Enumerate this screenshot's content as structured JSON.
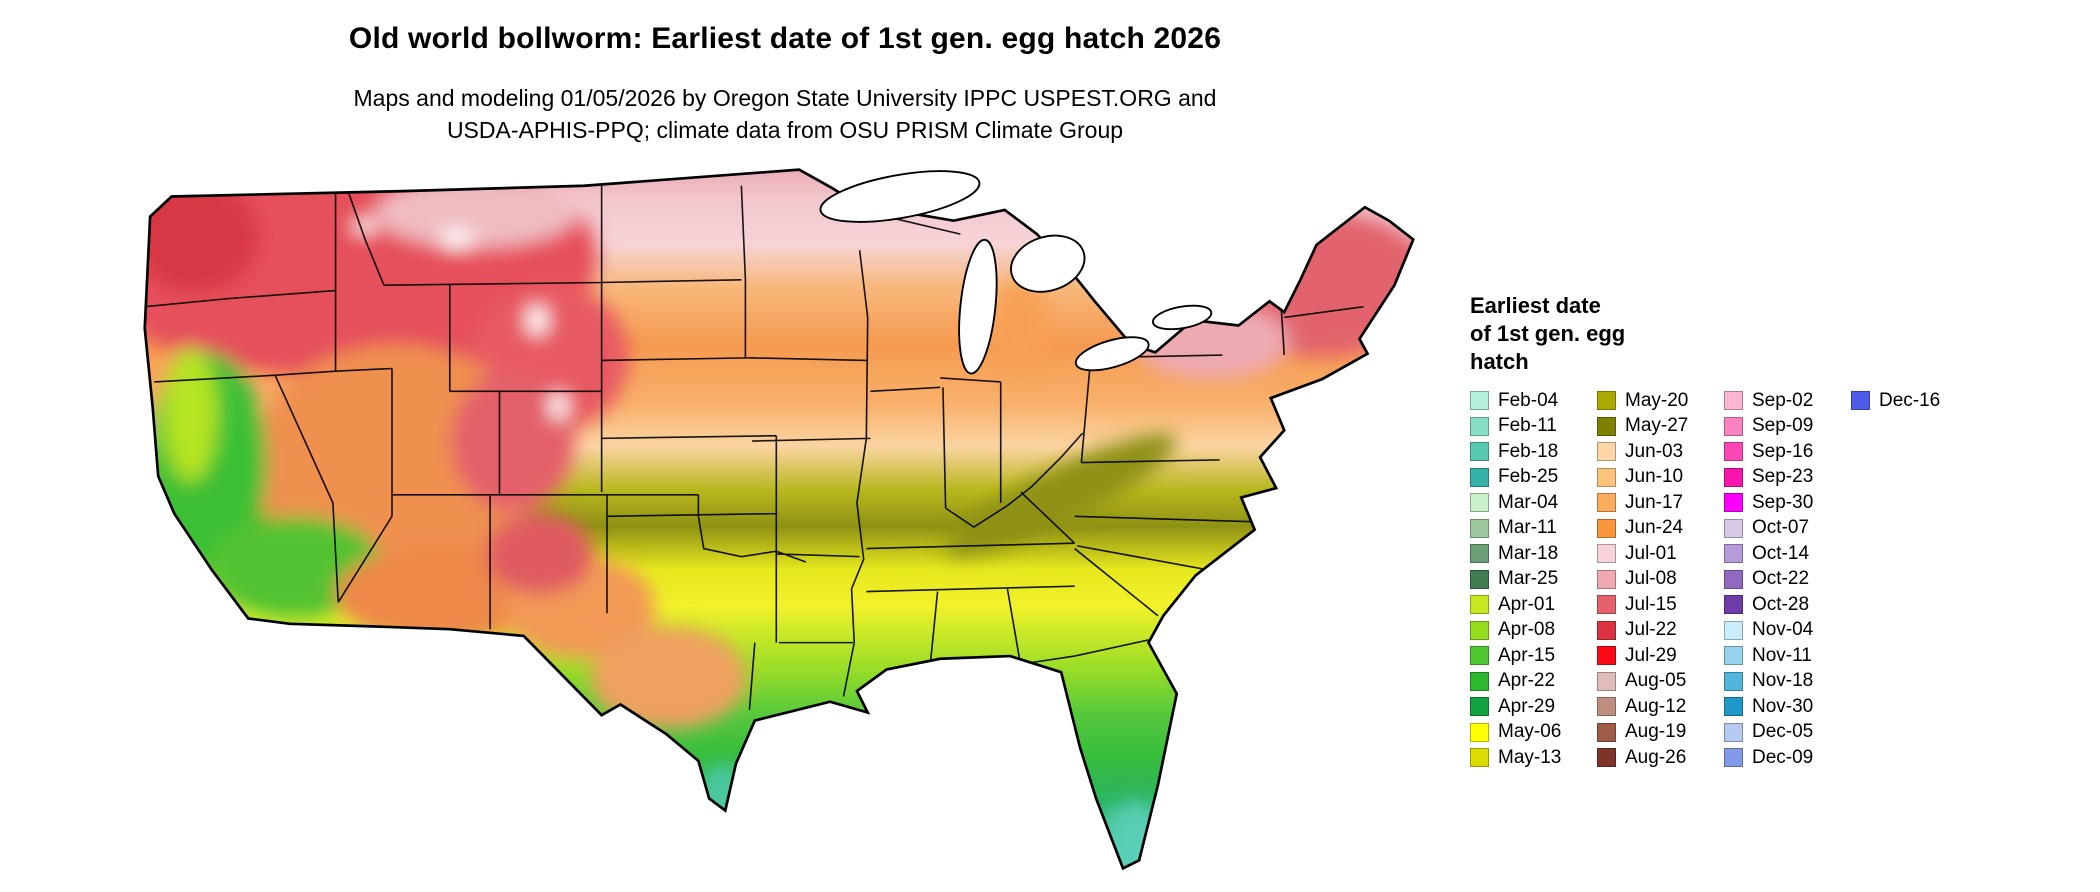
{
  "title": "Old world bollworm: Earliest date of 1st gen. egg hatch 2026",
  "subtitle": {
    "line1": "Maps and modeling 01/05/2026 by Oregon State University IPPC USPEST.ORG and",
    "line2": "USDA-APHIS-PPQ; climate data from OSU PRISM Climate Group"
  },
  "legend": {
    "title_lines": [
      "Earliest date",
      "of 1st gen. egg",
      "hatch"
    ],
    "columns": [
      [
        {
          "label": "Feb-04",
          "color": "#b2f0dc"
        },
        {
          "label": "Feb-11",
          "color": "#86dfc6"
        },
        {
          "label": "Feb-18",
          "color": "#58c9b2"
        },
        {
          "label": "Feb-25",
          "color": "#35b3a8"
        },
        {
          "label": "Mar-04",
          "color": "#c9f0c9"
        },
        {
          "label": "Mar-11",
          "color": "#9cc89c"
        },
        {
          "label": "Mar-18",
          "color": "#6ba077"
        },
        {
          "label": "Mar-25",
          "color": "#417d52"
        },
        {
          "label": "Apr-01",
          "color": "#c6e821"
        },
        {
          "label": "Apr-08",
          "color": "#94dc1e"
        },
        {
          "label": "Apr-15",
          "color": "#4fc832"
        },
        {
          "label": "Apr-22",
          "color": "#2db82d"
        },
        {
          "label": "Apr-29",
          "color": "#12a23f"
        },
        {
          "label": "May-06",
          "color": "#ffff00"
        },
        {
          "label": "May-13",
          "color": "#dcdc00"
        }
      ],
      [
        {
          "label": "May-20",
          "color": "#a9a900"
        },
        {
          "label": "May-27",
          "color": "#7f7f00"
        },
        {
          "label": "Jun-03",
          "color": "#fcd7a5"
        },
        {
          "label": "Jun-10",
          "color": "#fcc47b"
        },
        {
          "label": "Jun-17",
          "color": "#fbab5b"
        },
        {
          "label": "Jun-24",
          "color": "#f8953d"
        },
        {
          "label": "Jul-01",
          "color": "#f6d3d7"
        },
        {
          "label": "Jul-08",
          "color": "#f0a9b1"
        },
        {
          "label": "Jul-15",
          "color": "#e4616d"
        },
        {
          "label": "Jul-22",
          "color": "#dc3340"
        },
        {
          "label": "Jul-29",
          "color": "#fa0a14"
        },
        {
          "label": "Aug-05",
          "color": "#e0bdbd"
        },
        {
          "label": "Aug-12",
          "color": "#c08d81"
        },
        {
          "label": "Aug-19",
          "color": "#a05b47"
        },
        {
          "label": "Aug-26",
          "color": "#7c3328"
        }
      ],
      [
        {
          "label": "Sep-02",
          "color": "#fcb5d3"
        },
        {
          "label": "Sep-09",
          "color": "#fc83c1"
        },
        {
          "label": "Sep-16",
          "color": "#fc47b5"
        },
        {
          "label": "Sep-23",
          "color": "#f715ab"
        },
        {
          "label": "Sep-30",
          "color": "#fa00fa"
        },
        {
          "label": "Oct-07",
          "color": "#d9c9e9"
        },
        {
          "label": "Oct-14",
          "color": "#b59bd9"
        },
        {
          "label": "Oct-22",
          "color": "#9269c1"
        },
        {
          "label": "Oct-28",
          "color": "#6f3da9"
        },
        {
          "label": "Nov-04",
          "color": "#c9edfa"
        },
        {
          "label": "Nov-11",
          "color": "#97d3ed"
        },
        {
          "label": "Nov-18",
          "color": "#51b5dd"
        },
        {
          "label": "Nov-30",
          "color": "#1f97c9"
        },
        {
          "label": "Dec-05",
          "color": "#b5c9f1"
        },
        {
          "label": "Dec-09",
          "color": "#8399e9"
        }
      ],
      [
        {
          "label": "Dec-16",
          "color": "#4f5ae8"
        }
      ]
    ]
  }
}
